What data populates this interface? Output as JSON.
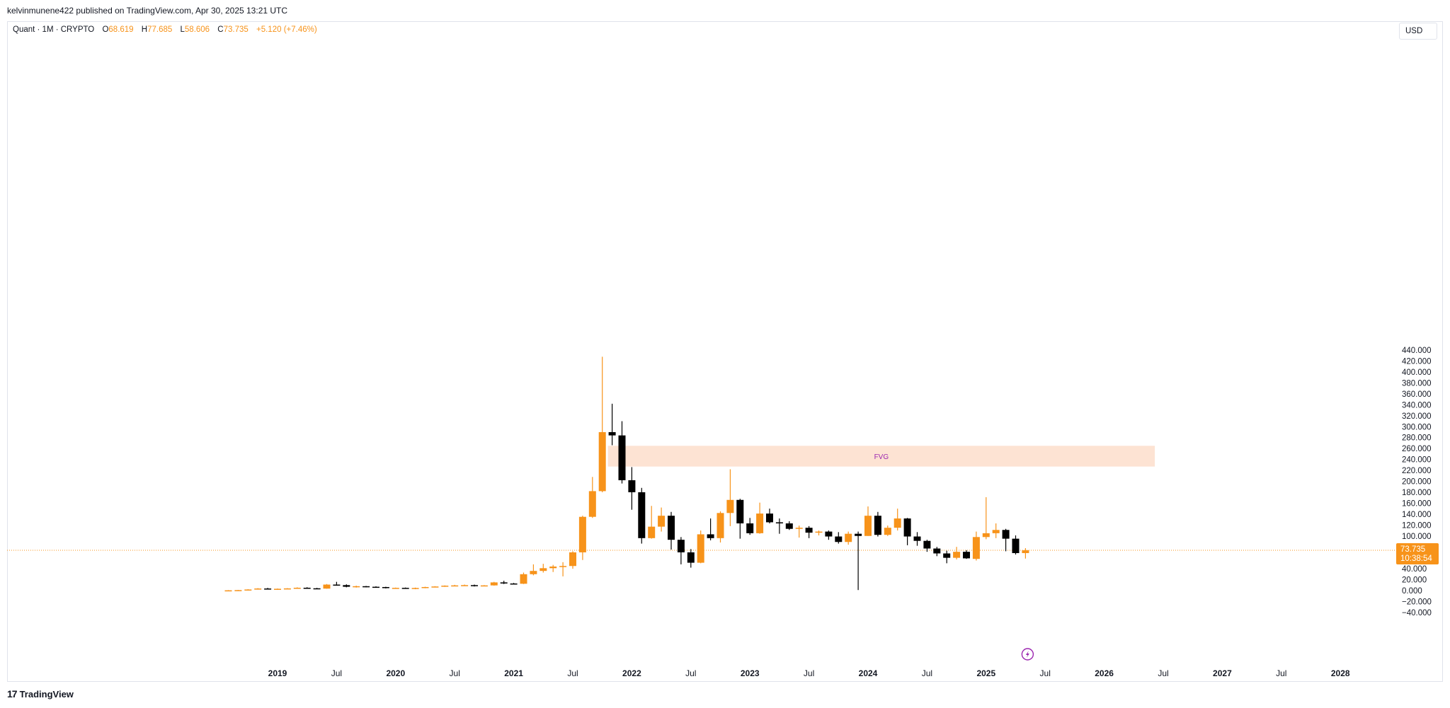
{
  "header": {
    "published": "kelvinmunene422 published on TradingView.com, Apr 30, 2025 13:21 UTC"
  },
  "symbol": {
    "name": "Quant · 1M · CRYPTO",
    "o_label": "O",
    "o_value": "68.619",
    "h_label": "H",
    "h_value": "77.685",
    "l_label": "L",
    "l_value": "58.606",
    "c_label": "C",
    "c_value": "73.735",
    "change": "+5.120 (+7.46%)"
  },
  "currency_button": "USD",
  "footer": {
    "logo_text": "TradingView",
    "logo_mark": "17"
  },
  "colors": {
    "up": "#f7931a",
    "down": "#000000",
    "fvg_fill": "#fde3d3",
    "fvg_text": "#9c27b0",
    "price_line": "#f7931a"
  },
  "chart_data": {
    "type": "candlestick",
    "interval": "1M",
    "y_axis": {
      "ticks": [
        -40,
        -20,
        0,
        20,
        40,
        60,
        80,
        100,
        120,
        140,
        160,
        180,
        200,
        220,
        240,
        260,
        280,
        300,
        320,
        340,
        360,
        380,
        400,
        420,
        440
      ],
      "tick_labels": [
        "−40.000",
        "−20.000",
        "0.000",
        "20.000",
        "40.000",
        "60.000",
        "80.000",
        "100.000",
        "120.000",
        "140.000",
        "160.000",
        "180.000",
        "200.000",
        "220.000",
        "240.000",
        "260.000",
        "280.000",
        "300.000",
        "320.000",
        "340.000",
        "360.000",
        "380.000",
        "400.000",
        "420.000",
        "440.000"
      ]
    },
    "x_axis": {
      "labels": [
        {
          "text": "2019",
          "date": "2019-01",
          "bold": true
        },
        {
          "text": "Jul",
          "date": "2019-07",
          "bold": false
        },
        {
          "text": "2020",
          "date": "2020-01",
          "bold": true
        },
        {
          "text": "Jul",
          "date": "2020-07",
          "bold": false
        },
        {
          "text": "2021",
          "date": "2021-01",
          "bold": true
        },
        {
          "text": "Jul",
          "date": "2021-07",
          "bold": false
        },
        {
          "text": "2022",
          "date": "2022-01",
          "bold": true
        },
        {
          "text": "Jul",
          "date": "2022-07",
          "bold": false
        },
        {
          "text": "2023",
          "date": "2023-01",
          "bold": true
        },
        {
          "text": "Jul",
          "date": "2023-07",
          "bold": false
        },
        {
          "text": "2024",
          "date": "2024-01",
          "bold": true
        },
        {
          "text": "Jul",
          "date": "2024-07",
          "bold": false
        },
        {
          "text": "2025",
          "date": "2025-01",
          "bold": true
        },
        {
          "text": "Jul",
          "date": "2025-07",
          "bold": false
        },
        {
          "text": "2026",
          "date": "2026-01",
          "bold": true
        },
        {
          "text": "Jul",
          "date": "2026-07",
          "bold": false
        },
        {
          "text": "2027",
          "date": "2027-01",
          "bold": true
        },
        {
          "text": "Jul",
          "date": "2027-07",
          "bold": false
        },
        {
          "text": "2028",
          "date": "2028-01",
          "bold": true
        }
      ]
    },
    "candles": [
      {
        "date": "2018-08",
        "o": 0.3,
        "h": 0.9,
        "l": 0.2,
        "c": 0.5
      },
      {
        "date": "2018-09",
        "o": 0.5,
        "h": 1.2,
        "l": 0.3,
        "c": 0.9
      },
      {
        "date": "2018-10",
        "o": 0.9,
        "h": 2.5,
        "l": 0.8,
        "c": 2.0
      },
      {
        "date": "2018-11",
        "o": 2.0,
        "h": 4.5,
        "l": 1.8,
        "c": 3.8
      },
      {
        "date": "2018-12",
        "o": 3.8,
        "h": 5.0,
        "l": 2.8,
        "c": 3.0
      },
      {
        "date": "2019-01",
        "o": 3.0,
        "h": 3.8,
        "l": 2.5,
        "c": 3.3
      },
      {
        "date": "2019-02",
        "o": 3.3,
        "h": 4.5,
        "l": 3.0,
        "c": 4.0
      },
      {
        "date": "2019-03",
        "o": 4.0,
        "h": 6.0,
        "l": 3.6,
        "c": 5.2
      },
      {
        "date": "2019-04",
        "o": 5.2,
        "h": 6.2,
        "l": 3.8,
        "c": 4.2
      },
      {
        "date": "2019-05",
        "o": 4.2,
        "h": 5.0,
        "l": 3.2,
        "c": 3.6
      },
      {
        "date": "2019-06",
        "o": 3.6,
        "h": 12.0,
        "l": 3.4,
        "c": 11.0
      },
      {
        "date": "2019-07",
        "o": 11.0,
        "h": 16.0,
        "l": 9.0,
        "c": 10.0
      },
      {
        "date": "2019-08",
        "o": 10.0,
        "h": 11.5,
        "l": 6.0,
        "c": 7.0
      },
      {
        "date": "2019-09",
        "o": 7.0,
        "h": 9.0,
        "l": 5.5,
        "c": 8.0
      },
      {
        "date": "2019-10",
        "o": 8.0,
        "h": 8.5,
        "l": 6.0,
        "c": 7.0
      },
      {
        "date": "2019-11",
        "o": 7.0,
        "h": 7.8,
        "l": 5.5,
        "c": 6.5
      },
      {
        "date": "2019-12",
        "o": 6.5,
        "h": 7.0,
        "l": 4.0,
        "c": 4.5
      },
      {
        "date": "2020-01",
        "o": 4.5,
        "h": 5.5,
        "l": 3.8,
        "c": 5.0
      },
      {
        "date": "2020-02",
        "o": 5.0,
        "h": 5.6,
        "l": 3.5,
        "c": 4.0
      },
      {
        "date": "2020-03",
        "o": 4.0,
        "h": 5.5,
        "l": 2.5,
        "c": 4.8
      },
      {
        "date": "2020-04",
        "o": 4.8,
        "h": 7.0,
        "l": 4.3,
        "c": 6.5
      },
      {
        "date": "2020-05",
        "o": 6.5,
        "h": 8.0,
        "l": 5.8,
        "c": 7.5
      },
      {
        "date": "2020-06",
        "o": 7.5,
        "h": 9.5,
        "l": 6.8,
        "c": 9.0
      },
      {
        "date": "2020-07",
        "o": 9.0,
        "h": 10.5,
        "l": 8.0,
        "c": 9.5
      },
      {
        "date": "2020-08",
        "o": 9.5,
        "h": 11.0,
        "l": 8.5,
        "c": 10.0
      },
      {
        "date": "2020-09",
        "o": 10.0,
        "h": 11.0,
        "l": 7.5,
        "c": 8.5
      },
      {
        "date": "2020-10",
        "o": 8.5,
        "h": 10.0,
        "l": 7.8,
        "c": 9.5
      },
      {
        "date": "2020-11",
        "o": 9.5,
        "h": 16.0,
        "l": 9.0,
        "c": 15.0
      },
      {
        "date": "2020-12",
        "o": 15.0,
        "h": 18.0,
        "l": 12.0,
        "c": 13.0
      },
      {
        "date": "2021-01",
        "o": 13.0,
        "h": 14.0,
        "l": 11.5,
        "c": 12.5
      },
      {
        "date": "2021-02",
        "o": 12.5,
        "h": 33.0,
        "l": 12.0,
        "c": 30.0
      },
      {
        "date": "2021-03",
        "o": 30.0,
        "h": 48.0,
        "l": 28.0,
        "c": 36.0
      },
      {
        "date": "2021-04",
        "o": 36.0,
        "h": 49.0,
        "l": 33.0,
        "c": 41.0
      },
      {
        "date": "2021-05",
        "o": 41.0,
        "h": 47.0,
        "l": 34.0,
        "c": 44.0
      },
      {
        "date": "2021-06",
        "o": 44.0,
        "h": 52.0,
        "l": 26.0,
        "c": 45.0
      },
      {
        "date": "2021-07",
        "o": 45.0,
        "h": 72.0,
        "l": 40.0,
        "c": 70.0
      },
      {
        "date": "2021-08",
        "o": 70.0,
        "h": 137.0,
        "l": 56.0,
        "c": 135.0
      },
      {
        "date": "2021-09",
        "o": 135.0,
        "h": 208.0,
        "l": 133.0,
        "c": 182.0
      },
      {
        "date": "2021-10",
        "o": 182.0,
        "h": 428.0,
        "l": 180.0,
        "c": 290.0
      },
      {
        "date": "2021-11",
        "o": 290.0,
        "h": 342.0,
        "l": 266.0,
        "c": 284.0
      },
      {
        "date": "2021-12",
        "o": 284.0,
        "h": 310.0,
        "l": 196.0,
        "c": 202.0
      },
      {
        "date": "2022-01",
        "o": 202.0,
        "h": 226.0,
        "l": 148.0,
        "c": 180.0
      },
      {
        "date": "2022-02",
        "o": 180.0,
        "h": 188.0,
        "l": 86.0,
        "c": 96.0
      },
      {
        "date": "2022-03",
        "o": 96.0,
        "h": 155.0,
        "l": 95.0,
        "c": 117.0
      },
      {
        "date": "2022-04",
        "o": 117.0,
        "h": 152.0,
        "l": 108.0,
        "c": 137.0
      },
      {
        "date": "2022-05",
        "o": 137.0,
        "h": 144.0,
        "l": 75.0,
        "c": 93.0
      },
      {
        "date": "2022-06",
        "o": 93.0,
        "h": 98.0,
        "l": 48.0,
        "c": 70.0
      },
      {
        "date": "2022-07",
        "o": 70.0,
        "h": 76.0,
        "l": 42.0,
        "c": 51.0
      },
      {
        "date": "2022-08",
        "o": 51.0,
        "h": 110.0,
        "l": 50.0,
        "c": 103.0
      },
      {
        "date": "2022-09",
        "o": 103.0,
        "h": 132.0,
        "l": 92.0,
        "c": 96.0
      },
      {
        "date": "2022-10",
        "o": 96.0,
        "h": 145.0,
        "l": 88.0,
        "c": 142.0
      },
      {
        "date": "2022-11",
        "o": 142.0,
        "h": 222.0,
        "l": 118.0,
        "c": 166.0
      },
      {
        "date": "2022-12",
        "o": 166.0,
        "h": 168.0,
        "l": 95.0,
        "c": 123.0
      },
      {
        "date": "2023-01",
        "o": 123.0,
        "h": 133.0,
        "l": 102.0,
        "c": 105.0
      },
      {
        "date": "2023-02",
        "o": 105.0,
        "h": 161.0,
        "l": 104.0,
        "c": 141.0
      },
      {
        "date": "2023-03",
        "o": 141.0,
        "h": 150.0,
        "l": 123.0,
        "c": 125.0
      },
      {
        "date": "2023-04",
        "o": 125.0,
        "h": 132.0,
        "l": 104.0,
        "c": 123.0
      },
      {
        "date": "2023-05",
        "o": 123.0,
        "h": 127.0,
        "l": 111.0,
        "c": 113.0
      },
      {
        "date": "2023-06",
        "o": 113.0,
        "h": 119.0,
        "l": 97.0,
        "c": 115.0
      },
      {
        "date": "2023-07",
        "o": 115.0,
        "h": 118.0,
        "l": 96.0,
        "c": 106.0
      },
      {
        "date": "2023-08",
        "o": 106.0,
        "h": 110.0,
        "l": 101.0,
        "c": 108.0
      },
      {
        "date": "2023-09",
        "o": 108.0,
        "h": 110.0,
        "l": 93.0,
        "c": 99.0
      },
      {
        "date": "2023-10",
        "o": 99.0,
        "h": 107.0,
        "l": 86.0,
        "c": 89.0
      },
      {
        "date": "2023-11",
        "o": 89.0,
        "h": 108.0,
        "l": 84.0,
        "c": 104.0
      },
      {
        "date": "2023-12",
        "o": 104.0,
        "h": 108.0,
        "l": 1.0,
        "c": 100.0
      },
      {
        "date": "2024-01",
        "o": 100.0,
        "h": 154.0,
        "l": 100.0,
        "c": 137.0
      },
      {
        "date": "2024-02",
        "o": 137.0,
        "h": 144.0,
        "l": 99.0,
        "c": 102.0
      },
      {
        "date": "2024-03",
        "o": 102.0,
        "h": 119.0,
        "l": 100.0,
        "c": 115.0
      },
      {
        "date": "2024-04",
        "o": 115.0,
        "h": 150.0,
        "l": 110.0,
        "c": 132.0
      },
      {
        "date": "2024-05",
        "o": 132.0,
        "h": 133.0,
        "l": 83.0,
        "c": 99.0
      },
      {
        "date": "2024-06",
        "o": 99.0,
        "h": 107.0,
        "l": 82.0,
        "c": 91.0
      },
      {
        "date": "2024-07",
        "o": 91.0,
        "h": 93.0,
        "l": 71.0,
        "c": 77.0
      },
      {
        "date": "2024-08",
        "o": 77.0,
        "h": 80.0,
        "l": 63.0,
        "c": 68.0
      },
      {
        "date": "2024-09",
        "o": 68.0,
        "h": 73.0,
        "l": 50.0,
        "c": 60.0
      },
      {
        "date": "2024-10",
        "o": 60.0,
        "h": 80.0,
        "l": 57.0,
        "c": 71.0
      },
      {
        "date": "2024-11",
        "o": 71.0,
        "h": 74.0,
        "l": 58.0,
        "c": 59.0
      },
      {
        "date": "2024-12",
        "o": 58.0,
        "h": 108.0,
        "l": 55.0,
        "c": 98.0
      },
      {
        "date": "2025-01",
        "o": 98.0,
        "h": 171.0,
        "l": 94.0,
        "c": 105.0
      },
      {
        "date": "2025-02",
        "o": 105.0,
        "h": 123.0,
        "l": 96.0,
        "c": 111.0
      },
      {
        "date": "2025-03",
        "o": 111.0,
        "h": 113.0,
        "l": 72.0,
        "c": 95.0
      },
      {
        "date": "2025-04",
        "o": 95.0,
        "h": 101.0,
        "l": 66.0,
        "c": 68.6
      },
      {
        "date": "2025-05",
        "o": 68.619,
        "h": 77.685,
        "l": 58.606,
        "c": 73.735
      }
    ],
    "fvg_zone": {
      "label": "FVG",
      "from": "2021-11",
      "to": "2026-06",
      "low": 227,
      "high": 265
    },
    "last_price": {
      "value": 73.735,
      "label": "73.735",
      "countdown": "10:38:54"
    }
  }
}
